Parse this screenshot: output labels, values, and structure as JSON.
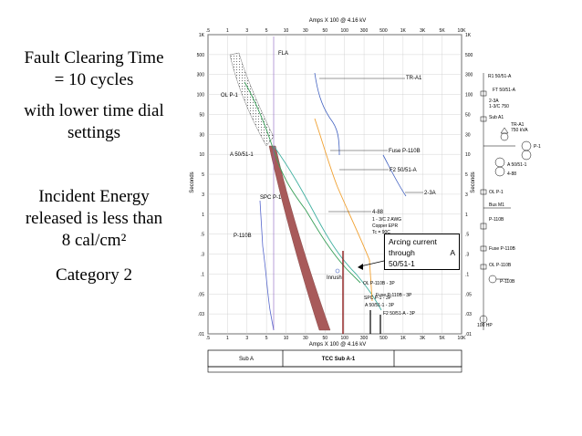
{
  "left_panel": {
    "line1": "Fault Clearing Time",
    "line2": "= 10 cycles",
    "line3": "with lower time dial",
    "line4": "settings",
    "line5": "Incident Energy",
    "line6": "released is less than",
    "line7": "8 cal/cm²",
    "line8": "Category 2"
  },
  "chart": {
    "x_title_top": "Amps  X  100 @ 4.16 kV",
    "x_title_bottom": "Amps  X  100 @ 4.16 kV",
    "y_title_left": "Seconds",
    "y_title_right": "Seconds",
    "x_ticks": [
      ".5",
      "1",
      "3",
      "5",
      "10",
      "30",
      "50",
      "100",
      "300",
      "500",
      "1K",
      "3K",
      "5K",
      "10K"
    ],
    "y_ticks": [
      "1K",
      "500",
      "300",
      "100",
      "50",
      "30",
      "10",
      "5",
      "3",
      "1",
      ".5",
      ".3",
      ".1",
      ".05",
      ".03",
      ".01"
    ],
    "curve_labels": {
      "fla": "FLA",
      "tr": "TR-A1",
      "olp": "OL P-1",
      "a5051": "A 50/51-1",
      "fuse": "Fuse P-110B",
      "f2": "F2 50/51-A",
      "spc": "SPC P-1",
      "cable": "2-3A",
      "p110b": "P-110B",
      "inrush": "Inrush",
      "c488": "4-88",
      "c488_sub1": "1 - 3/C 2 AWG",
      "c488_sub2": "Copper  EPR",
      "c488_sub3": "Tc = 90C",
      "bottom1": "OL P-110B - 3P",
      "bottom2": "Fuse P-110B - 3P",
      "bottom3": "SPC P-1 - 3P",
      "bottom4": "A 50/51-1 - 3P",
      "bottom5": "F2 50/51-A - 3P"
    },
    "arc_callout": {
      "line1": "Arcing current",
      "line2a": "through",
      "line2b": "A",
      "line3": "50/51-1"
    },
    "title_block": {
      "left": "Sub A",
      "center": "TCC Sub A-1"
    }
  },
  "one_line": {
    "labels": [
      "R1 50/51-A",
      "FT 50/51-A",
      "2-3A",
      "1-3/C 750",
      "Sub A1",
      "TR-A1",
      "750 kVA",
      "P-1",
      "A 50/51-1",
      "4-88",
      "OL P-1",
      "Bus M1",
      "P-110B",
      "Fuse P-110B",
      "OL P-110B",
      "P-110B",
      "100 HP"
    ]
  },
  "colors": {
    "red_band": "#a85a5a",
    "orange": "#f0a030",
    "green": "#3aa05a",
    "teal": "#40b0a0",
    "blue": "#4060c0",
    "dark_red": "#8b1a1a"
  }
}
